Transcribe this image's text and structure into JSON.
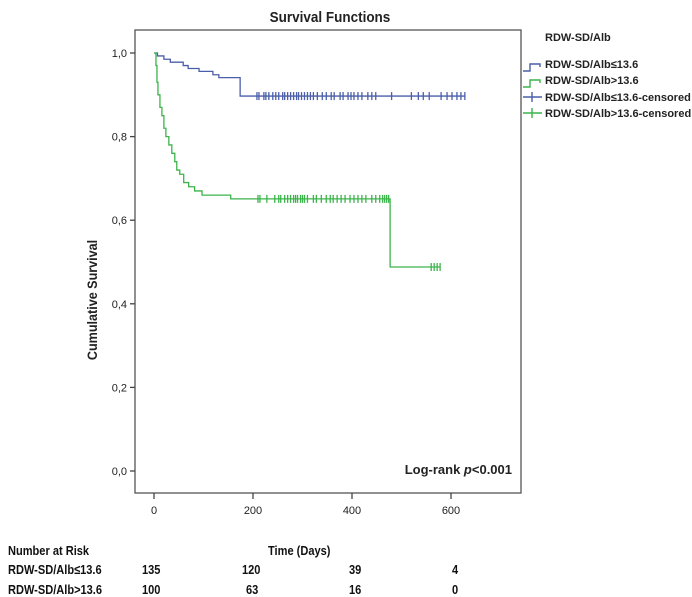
{
  "chart_data": {
    "type": "line",
    "subtype": "kaplan-meier",
    "title": "Survival Functions",
    "xlabel": "Time (Days)",
    "ylabel": "Cumulative Survival",
    "xlim": [
      -30,
      740
    ],
    "ylim": [
      -0.05,
      1.055
    ],
    "xticks": [
      0,
      200,
      400,
      600
    ],
    "xtick_labels": [
      "0",
      "200",
      "400",
      "600"
    ],
    "yticks": [
      0.0,
      0.2,
      0.4,
      0.6,
      0.8,
      1.0
    ],
    "ytick_labels": [
      "0,0",
      "0,2",
      "0,4",
      "0,6",
      "0,8",
      "1,0"
    ],
    "grid": false,
    "legend_title": "RDW-SD/Alb",
    "legend_position": "right",
    "annotation": {
      "log_rank_prefix": "Log-rank ",
      "log_rank_p": "p",
      "log_rank_suffix": "<0.001"
    },
    "series": [
      {
        "name": "RDW-SD/Alb≤13.6",
        "censored_name": "RDW-SD/Alb≤13.6-censored",
        "color": "#4a5fa8",
        "steps": [
          [
            0,
            1.0
          ],
          [
            7,
            0.993
          ],
          [
            20,
            0.985
          ],
          [
            33,
            0.978
          ],
          [
            59,
            0.97
          ],
          [
            69,
            0.963
          ],
          [
            91,
            0.956
          ],
          [
            119,
            0.948
          ],
          [
            131,
            0.941
          ],
          [
            174,
            0.897
          ]
        ],
        "censored": [
          208,
          212,
          222,
          226,
          232,
          240,
          246,
          252,
          260,
          264,
          270,
          276,
          282,
          288,
          292,
          298,
          304,
          310,
          316,
          322,
          330,
          340,
          348,
          358,
          364,
          376,
          382,
          392,
          398,
          404,
          412,
          420,
          432,
          440,
          448,
          480,
          520,
          534,
          544,
          556,
          580,
          592,
          602,
          612,
          620,
          628
        ],
        "censored_level": 0.897
      },
      {
        "name": "RDW-SD/Alb>13.6",
        "censored_name": "RDW-SD/Alb>13.6-censored",
        "color": "#3cb44b",
        "steps": [
          [
            0,
            1.0
          ],
          [
            4,
            0.97
          ],
          [
            6,
            0.93
          ],
          [
            8,
            0.9
          ],
          [
            12,
            0.87
          ],
          [
            16,
            0.85
          ],
          [
            20,
            0.82
          ],
          [
            24,
            0.8
          ],
          [
            30,
            0.78
          ],
          [
            36,
            0.76
          ],
          [
            42,
            0.74
          ],
          [
            46,
            0.72
          ],
          [
            52,
            0.71
          ],
          [
            60,
            0.69
          ],
          [
            70,
            0.68
          ],
          [
            82,
            0.67
          ],
          [
            97,
            0.66
          ],
          [
            155,
            0.651
          ],
          [
            477,
            0.488
          ]
        ],
        "censored": [
          210,
          214,
          228,
          244,
          252,
          256,
          264,
          270,
          276,
          282,
          286,
          290,
          296,
          300,
          304,
          310,
          322,
          328,
          338,
          348,
          356,
          362,
          370,
          378,
          386,
          396,
          404,
          412,
          420,
          428,
          440,
          448,
          456,
          462,
          466,
          470,
          474
        ],
        "censored_level": 0.651,
        "censored_after": [
          560,
          566,
          572,
          578
        ],
        "censored_after_level": 0.488
      }
    ]
  },
  "risk_table": {
    "title": "Number at Risk",
    "time_label": "Time (Days)",
    "rows": [
      {
        "label": "RDW-SD/Alb≤13.6",
        "values": [
          "135",
          "120",
          "39",
          "4"
        ]
      },
      {
        "label": "RDW-SD/Alb>13.6",
        "values": [
          "100",
          "63",
          "16",
          "0"
        ]
      }
    ]
  }
}
